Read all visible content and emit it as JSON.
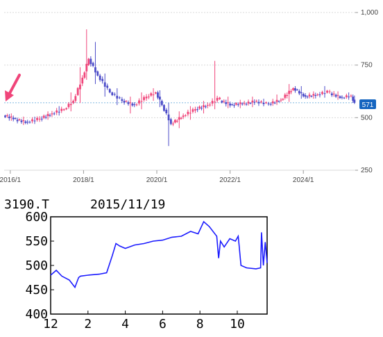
{
  "top_chart": {
    "colors": {
      "up": "#f0457a",
      "down": "#4b4bc8",
      "last_badge": "#1565c0",
      "arrow": "#f0457a"
    },
    "current_price_label": "571",
    "chart_data": {
      "type": "candlestick",
      "title": "",
      "xlabel": "",
      "ylabel": "",
      "x_ticks": [
        "2016/1",
        "2018/1",
        "2020/1",
        "2022/1",
        "2024/1"
      ],
      "y_ticks": [
        "1,000",
        "750",
        "500",
        "250"
      ],
      "ylim": [
        250,
        1000
      ],
      "xlim": [
        "2015/11",
        "2025/6"
      ],
      "grid": "horizontal dotted",
      "reference_line": 571,
      "marker": "left arrow",
      "series": [
        {
          "date": "2015-11",
          "open": 510,
          "close": 495,
          "high": 520,
          "low": 485
        },
        {
          "date": "2016-03",
          "open": 490,
          "close": 478,
          "high": 505,
          "low": 465
        },
        {
          "date": "2016-07",
          "open": 480,
          "close": 495,
          "high": 505,
          "low": 470
        },
        {
          "date": "2016-11",
          "open": 495,
          "close": 520,
          "high": 530,
          "low": 490
        },
        {
          "date": "2017-03",
          "open": 520,
          "close": 540,
          "high": 555,
          "low": 510
        },
        {
          "date": "2017-07",
          "open": 540,
          "close": 580,
          "high": 620,
          "low": 530
        },
        {
          "date": "2017-10",
          "open": 580,
          "close": 690,
          "high": 740,
          "low": 570
        },
        {
          "date": "2018-01",
          "open": 690,
          "close": 780,
          "high": 920,
          "low": 680
        },
        {
          "date": "2018-03",
          "open": 780,
          "close": 700,
          "high": 860,
          "low": 660
        },
        {
          "date": "2018-06",
          "open": 700,
          "close": 620,
          "high": 710,
          "low": 600
        },
        {
          "date": "2018-10",
          "open": 620,
          "close": 580,
          "high": 640,
          "low": 560
        },
        {
          "date": "2019-02",
          "open": 580,
          "close": 560,
          "high": 600,
          "low": 520
        },
        {
          "date": "2019-06",
          "open": 560,
          "close": 600,
          "high": 620,
          "low": 540
        },
        {
          "date": "2019-10",
          "open": 600,
          "close": 620,
          "high": 640,
          "low": 580
        },
        {
          "date": "2020-01",
          "open": 620,
          "close": 560,
          "high": 630,
          "low": 550
        },
        {
          "date": "2020-03",
          "open": 560,
          "close": 470,
          "high": 570,
          "low": 365
        },
        {
          "date": "2020-06",
          "open": 470,
          "close": 510,
          "high": 530,
          "low": 450
        },
        {
          "date": "2020-10",
          "open": 510,
          "close": 540,
          "high": 555,
          "low": 490
        },
        {
          "date": "2021-02",
          "open": 540,
          "close": 560,
          "high": 580,
          "low": 520
        },
        {
          "date": "2021-06",
          "open": 560,
          "close": 595,
          "high": 770,
          "low": 540
        },
        {
          "date": "2021-10",
          "open": 580,
          "close": 560,
          "high": 600,
          "low": 545
        },
        {
          "date": "2022-02",
          "open": 560,
          "close": 570,
          "high": 585,
          "low": 545
        },
        {
          "date": "2022-06",
          "open": 565,
          "close": 580,
          "high": 600,
          "low": 550
        },
        {
          "date": "2022-10",
          "open": 575,
          "close": 565,
          "high": 590,
          "low": 555
        },
        {
          "date": "2023-02",
          "open": 565,
          "close": 585,
          "high": 610,
          "low": 560
        },
        {
          "date": "2023-06",
          "open": 585,
          "close": 640,
          "high": 660,
          "low": 575
        },
        {
          "date": "2023-10",
          "open": 640,
          "close": 600,
          "high": 650,
          "low": 590
        },
        {
          "date": "2024-02",
          "open": 600,
          "close": 610,
          "high": 625,
          "low": 590
        },
        {
          "date": "2024-06",
          "open": 610,
          "close": 625,
          "high": 650,
          "low": 595
        },
        {
          "date": "2024-10",
          "open": 615,
          "close": 595,
          "high": 625,
          "low": 585
        },
        {
          "date": "2025-02",
          "open": 595,
          "close": 605,
          "high": 620,
          "low": 585
        },
        {
          "date": "2025-05",
          "open": 600,
          "close": 571,
          "high": 605,
          "low": 565
        }
      ]
    }
  },
  "bottom_chart": {
    "ticker": "3190.T",
    "date": "2015/11/19",
    "line_color": "#1a1aff",
    "chart_data": {
      "type": "line",
      "title": "",
      "xlabel": "",
      "ylabel": "",
      "x_tick_labels": [
        "12",
        "2",
        "4",
        "6",
        "8",
        "10"
      ],
      "y_ticks": [
        600,
        550,
        500,
        450,
        400
      ],
      "ylim": [
        400,
        600
      ],
      "xlim": [
        0,
        11.6
      ],
      "grid": false,
      "series": [
        {
          "x": [
            0.0,
            0.3,
            0.6,
            1.0,
            1.3,
            1.5,
            1.6,
            2.0,
            2.6,
            3.0,
            3.3,
            3.5,
            3.7,
            4.0,
            4.5,
            5.0,
            5.5,
            6.0,
            6.5,
            7.0,
            7.5,
            7.9,
            8.2,
            8.5,
            8.9,
            9.0,
            9.1,
            9.3,
            9.6,
            9.9,
            10.05,
            10.1,
            10.2,
            10.5,
            11.0,
            11.25,
            11.3,
            11.4,
            11.5,
            11.6
          ],
          "y": [
            480,
            490,
            478,
            470,
            455,
            475,
            478,
            480,
            482,
            485,
            520,
            545,
            540,
            535,
            542,
            545,
            550,
            552,
            558,
            560,
            570,
            565,
            590,
            580,
            560,
            515,
            550,
            538,
            555,
            550,
            560,
            540,
            500,
            495,
            493,
            495,
            568,
            500,
            548,
            505
          ]
        }
      ]
    }
  }
}
